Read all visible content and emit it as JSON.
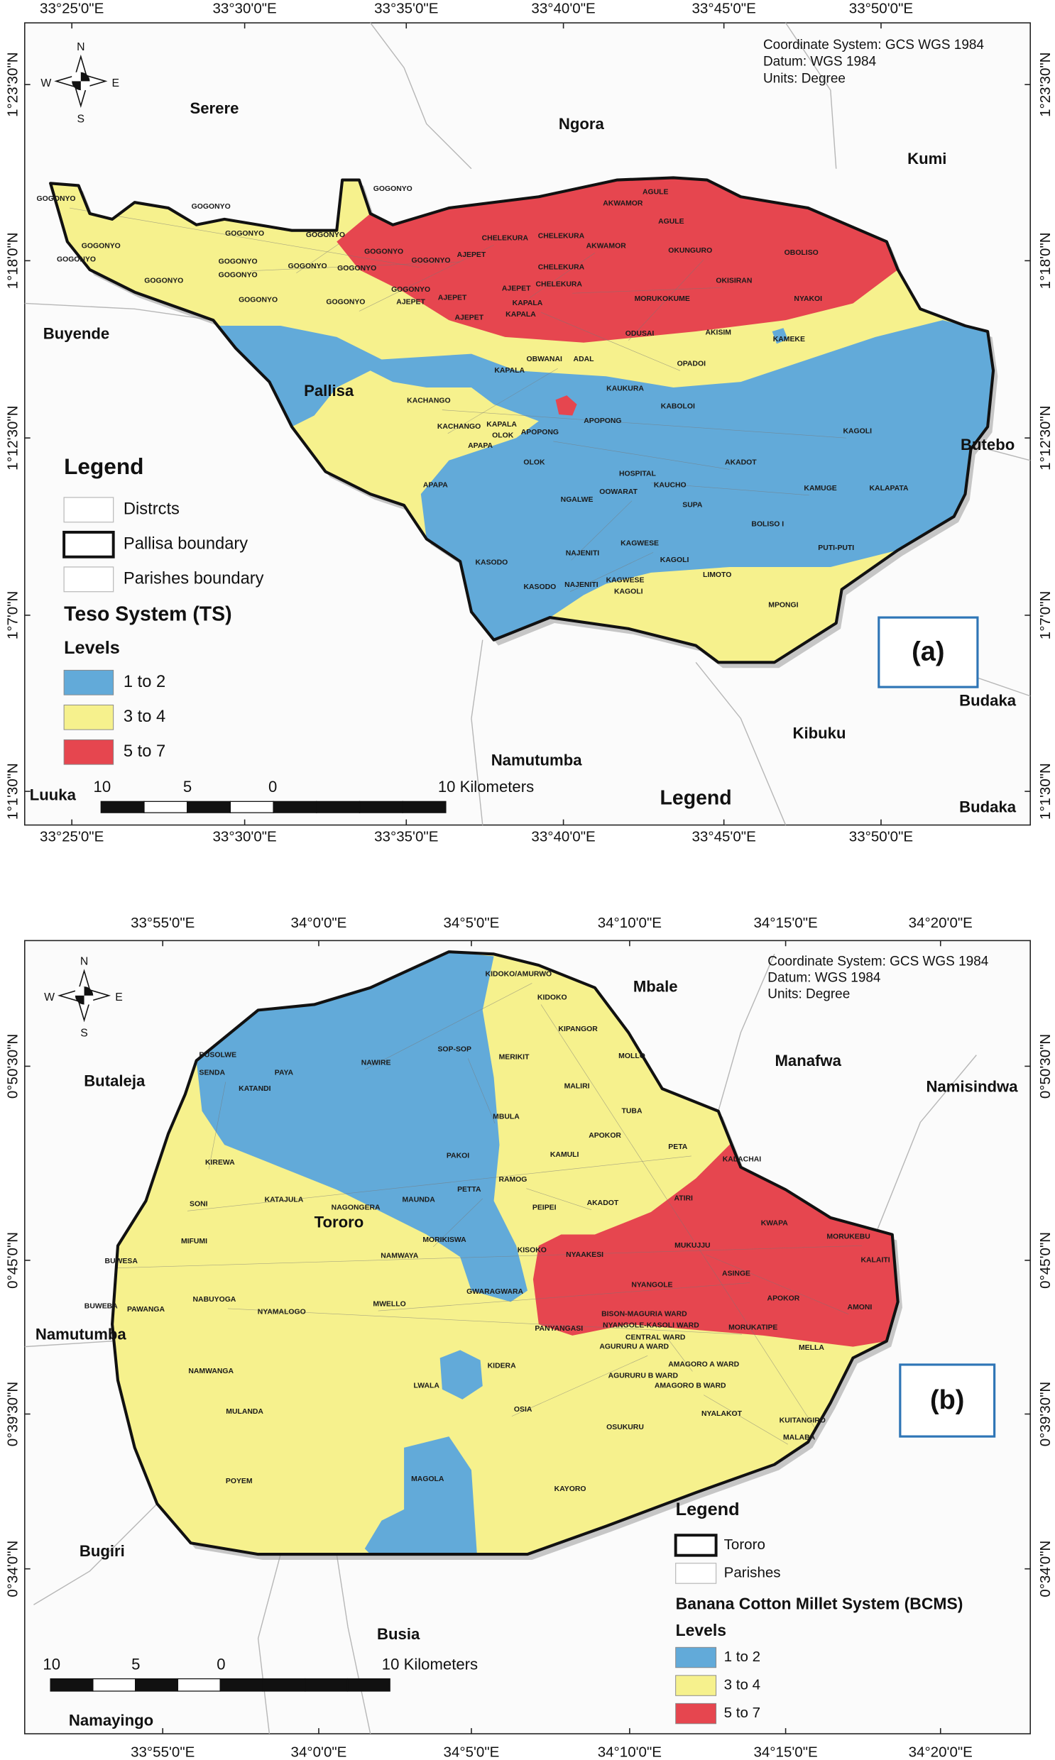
{
  "maps": [
    {
      "coordinate_info": [
        "Coordinate System: GCS WGS 1984",
        "Datum: WGS 1984",
        "Units: Degree"
      ],
      "longitude_ticks": [
        "33°25'0\"E",
        "33°30'0\"E",
        "33°35'0\"E",
        "33°40'0\"E",
        "33°45'0\"E",
        "33°50'0\"E"
      ],
      "latitude_ticks": [
        "1°23'30\"N",
        "1°18'0\"N",
        "1°12'30\"N",
        "1°7'0\"N",
        "1°1'30\"N"
      ],
      "compass": [
        "N",
        "E",
        "S",
        "W"
      ],
      "places": [
        "Serere",
        "Ngora",
        "Kumi",
        "Buyende",
        "Pallisa",
        "Butebo",
        "Budaka",
        "Kibuku",
        "Namutumba",
        "Luuka",
        "Budaka"
      ],
      "parishes": [
        "GOGONYO",
        "GOGONYO",
        "GOGONYO",
        "GOGONYO",
        "GOGONYO",
        "GOGONYO",
        "GOGONYO",
        "GOGONYO",
        "GOGONYO",
        "GOGONYO",
        "GOGONYO",
        "GOGONYO",
        "GOGONYO",
        "GOGONYO",
        "GOGONYO",
        "GOGONYO",
        "GOGONYO",
        "AJEPET",
        "AJEPET",
        "AJEPET",
        "AJEPET",
        "AJEPET",
        "CHELEKURA",
        "CHELEKURA",
        "CHELEKURA",
        "CHELEKURA",
        "AKWAMOR",
        "AKWAMOR",
        "AGULE",
        "AGULE",
        "OKUNGURO",
        "OBOLISO",
        "OKISIRAN",
        "NYAKOI",
        "MORUKOKUME",
        "KAPALA",
        "KAPALA",
        "ODUSAI",
        "AKISIM",
        "KAMEKE",
        "OBWANAI",
        "ADAL",
        "OPADOI",
        "KAPALA",
        "KAUKURA",
        "KACHANGO",
        "KABOLOI",
        "KACHANGO",
        "KAPALA",
        "OLOK",
        "APOPONG",
        "APOPONG",
        "KAGOLI",
        "APAPA",
        "OLOK",
        "HOSPITAL",
        "KAUCHO",
        "AKADOT",
        "APAPA",
        "NGALWE",
        "OOWARAT",
        "SUPA",
        "KAMUGE",
        "KALAPATA",
        "BOLISO I",
        "KAGWESE",
        "KASODO",
        "NAJENITI",
        "KAGOLI",
        "PUTI-PUTI",
        "LIMOTO",
        "KASODO",
        "NAJENITI",
        "KAGWESE",
        "KAGOLI",
        "MPONGI"
      ],
      "legend": {
        "title": "Legend",
        "items": [
          "Distrcts",
          "Pallisa boundary",
          "Parishes boundary"
        ],
        "system": "Teso System (TS)",
        "levels_title": "Levels",
        "levels": [
          "1 to 2",
          "3 to 4",
          "5 to 7"
        ]
      },
      "level_colors": [
        "#62aad9",
        "#f6f18d",
        "#e6464f"
      ],
      "scale_labels": [
        "10",
        "5",
        "0",
        "10 Kilometers"
      ],
      "extra_label": "Legend",
      "panel_label": "(a)"
    },
    {
      "coordinate_info": [
        "Coordinate System: GCS WGS 1984",
        "Datum: WGS 1984",
        "Units: Degree"
      ],
      "longitude_ticks": [
        "33°55'0\"E",
        "34°0'0\"E",
        "34°5'0\"E",
        "34°10'0\"E",
        "34°15'0\"E",
        "34°20'0\"E"
      ],
      "latitude_ticks": [
        "0°50'30\"N",
        "0°45'0\"N",
        "0°39'30\"N",
        "0°34'0\"N"
      ],
      "compass": [
        "N",
        "E",
        "S",
        "W"
      ],
      "places": [
        "Mbale",
        "Butaleja",
        "Manafwa",
        "Namisindwa",
        "Tororo",
        "Namutumba",
        "Bugiri",
        "Busia",
        "Namayingo"
      ],
      "parishes": [
        "KIDOKO/AMURWO",
        "KIDOKO",
        "KIPANGOR",
        "BUSOLWE",
        "MOLLO",
        "SOP-SOP",
        "MERIKIT",
        "NAWIRE",
        "PAYA",
        "MALIRI",
        "SENDA",
        "KATANDI",
        "MBULA",
        "TUBA",
        "APOKOR",
        "PETA",
        "KALACHAI",
        "KIREWA",
        "PAKOI",
        "KAMULI",
        "RAMOG",
        "KATAJULA",
        "SONI",
        "NAGONGERA",
        "MAUNDA",
        "PETTA",
        "PEIPEI",
        "AKADOT",
        "ATIRI",
        "KWAPA",
        "MORUKEBU",
        "MIFUMI",
        "MORIKISWA",
        "KISOKO",
        "NYAAKESI",
        "MUKUJJU",
        "KALAITI",
        "BUWESA",
        "NAMWAYA",
        "NYANGOLE",
        "ASINGE",
        "GWARAGWARA",
        "AMONI",
        "BUWEBA",
        "PAWANGA",
        "NABUYOGA",
        "NYAMALOGO",
        "MWELLO",
        "APOKOR",
        "BISON-MAGURIA WARD",
        "NYANGOLE-KASOLI WARD",
        "PANYANGASI",
        "MORUKATIPE",
        "CENTRAL WARD",
        "MELLA",
        "AGURURU A WARD",
        "KIDERA",
        "AMAGORO A WARD",
        "NAMWANGA",
        "AGURURU B WARD",
        "AMAGORO B WARD",
        "LWALA",
        "OSIA",
        "MULANDA",
        "NYALAKOT",
        "KUITANGIRO",
        "OSUKURU",
        "MALABA",
        "POYEM",
        "MAGOLA",
        "KAYORO"
      ],
      "legend": {
        "title": "Legend",
        "items": [
          "Tororo",
          "Parishes"
        ],
        "system": "Banana Cotton Millet System (BCMS)",
        "levels_title": "Levels",
        "levels": [
          "1 to 2",
          "3 to 4",
          "5 to 7"
        ]
      },
      "level_colors": [
        "#62aad9",
        "#f6f18d",
        "#e6464f"
      ],
      "scale_labels": [
        "10",
        "5",
        "0",
        "10 Kilometers"
      ],
      "panel_label": "(b)"
    }
  ]
}
